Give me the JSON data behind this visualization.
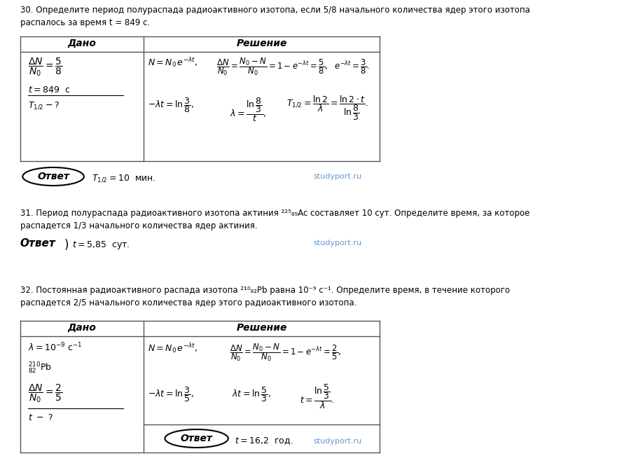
{
  "bg_color": "#ffffff",
  "text_color": "#000000",
  "table_line_color": "#555555",
  "studyport_color": "#6699cc",
  "page_width": 9.12,
  "page_height": 6.71,
  "problem30": {
    "header": "30. Определите период полураспада радиоактивного изотопа, если 5/8 начального количества ядер этого изотопа\nраспалось за время t = 849 с.",
    "dado_label": "Дано",
    "reshenie_label": "Решение",
    "answer_text": "T_{1/2} = 10  мин.",
    "studyport": "studyport.ru"
  },
  "problem31": {
    "header": "31. Период полураспада радиоактивного изотопа актиния ²²⁵₈₉Ac составляет 10 сут. Определите время, за которое\nраспадется 1/3 начального количества ядер актиния.",
    "answer_text": "t = 5,85  сут.",
    "studyport": "studyport.ru"
  },
  "problem32": {
    "header": "32. Постоянная радиоактивного распада изотопа ²¹⁰₈₂Pb равна 10⁻⁹ с⁻¹. Определите время, в течение которого\nраспадется 2/5 начального количества ядер этого радиоактивного изотопа.",
    "dado_label": "Дано",
    "reshenie_label": "Решение",
    "answer_text": "t = 16,2 год.",
    "studyport": "studyport.ru"
  }
}
